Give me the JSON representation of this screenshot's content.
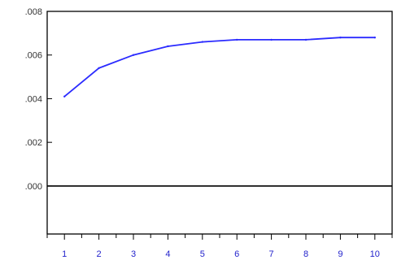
{
  "chart_data": {
    "type": "line",
    "title": "",
    "xlabel": "",
    "ylabel": "",
    "x": [
      1,
      2,
      3,
      4,
      5,
      6,
      7,
      8,
      9,
      10
    ],
    "series": [
      {
        "values": [
          0.0041,
          0.0054,
          0.006,
          0.0064,
          0.0066,
          0.0067,
          0.0067,
          0.0067,
          0.0068,
          0.0068
        ]
      }
    ],
    "xlim": [
      0.5,
      10.5
    ],
    "ylim": [
      -0.0022,
      0.008
    ],
    "yticks": [
      0.0,
      0.002,
      0.004,
      0.006,
      0.008
    ],
    "ytick_labels": [
      ".000",
      ".002",
      ".004",
      ".006",
      ".008"
    ],
    "xtick_labels": [
      "1",
      "2",
      "3",
      "4",
      "5",
      "6",
      "7",
      "8",
      "9",
      "10"
    ],
    "zero_line": true,
    "grid": false,
    "colors": {
      "line": "#2b2bff",
      "axis": "#000000",
      "zero": "#000000",
      "xtick_text": "#2222cc"
    }
  }
}
